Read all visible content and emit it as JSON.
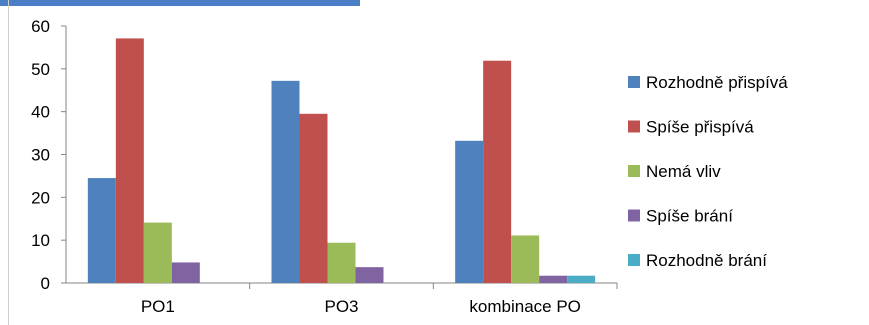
{
  "chart_data": {
    "type": "bar",
    "categories": [
      "PO1",
      "PO3",
      "kombinace PO"
    ],
    "series": [
      {
        "name": "Rozhodně přispívá",
        "color": "#4f81bd",
        "values": [
          24.5,
          47.2,
          33.2
        ]
      },
      {
        "name": "Spíše přispívá",
        "color": "#c0504d",
        "values": [
          57.1,
          39.5,
          51.9
        ]
      },
      {
        "name": "Nemá vliv",
        "color": "#9bbb59",
        "values": [
          14.1,
          9.4,
          11.1
        ]
      },
      {
        "name": "Spíše brání",
        "color": "#8064a2",
        "values": [
          4.8,
          3.7,
          1.7
        ]
      },
      {
        "name": "Rozhodně brání",
        "color": "#4bacc6",
        "values": [
          0,
          0,
          1.7
        ]
      }
    ],
    "yticks": [
      "0",
      "10",
      "20",
      "30",
      "40",
      "50",
      "60"
    ],
    "ylim": [
      0,
      60
    ],
    "grid": false,
    "legend_position": "right"
  }
}
